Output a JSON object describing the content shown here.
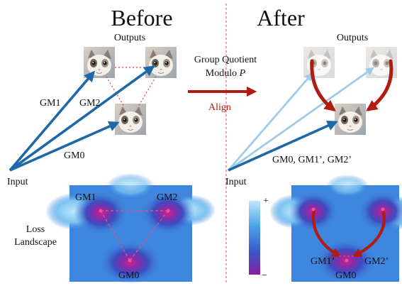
{
  "headings": {
    "before": "Before",
    "after": "After"
  },
  "labels": {
    "outputs_left": "Outputs",
    "outputs_right": "Outputs",
    "input_left": "Input",
    "input_right": "Input",
    "gm1": "GM1",
    "gm2": "GM2",
    "gm0": "GM0",
    "after_gms": "GM0, GM1’, GM2’",
    "loss_line1": "Loss",
    "loss_line2": "Landscape",
    "group_line1": "Group Quotient",
    "group_line2_prefix": "Modulo ",
    "group_line2_var": "P",
    "align": "Align",
    "loss_gm1": "GM1",
    "loss_gm2": "GM2",
    "loss_gm0": "GM0",
    "loss_gm1p": "GM1’",
    "loss_gm2p": "GM2’",
    "loss_gm0_right": "GM0",
    "colorbar_plus": "+",
    "colorbar_minus": "−"
  },
  "colors": {
    "arrow_blue": "#1f68a8",
    "arrow_light_blue": "#9fcbe8",
    "align_red": "#b01c12",
    "dotted_pink": "#e0507a",
    "landscape_bg": "#3e86de",
    "colorbar_top": "#bfe8fb",
    "colorbar_bottom": "#8a1fa0"
  }
}
